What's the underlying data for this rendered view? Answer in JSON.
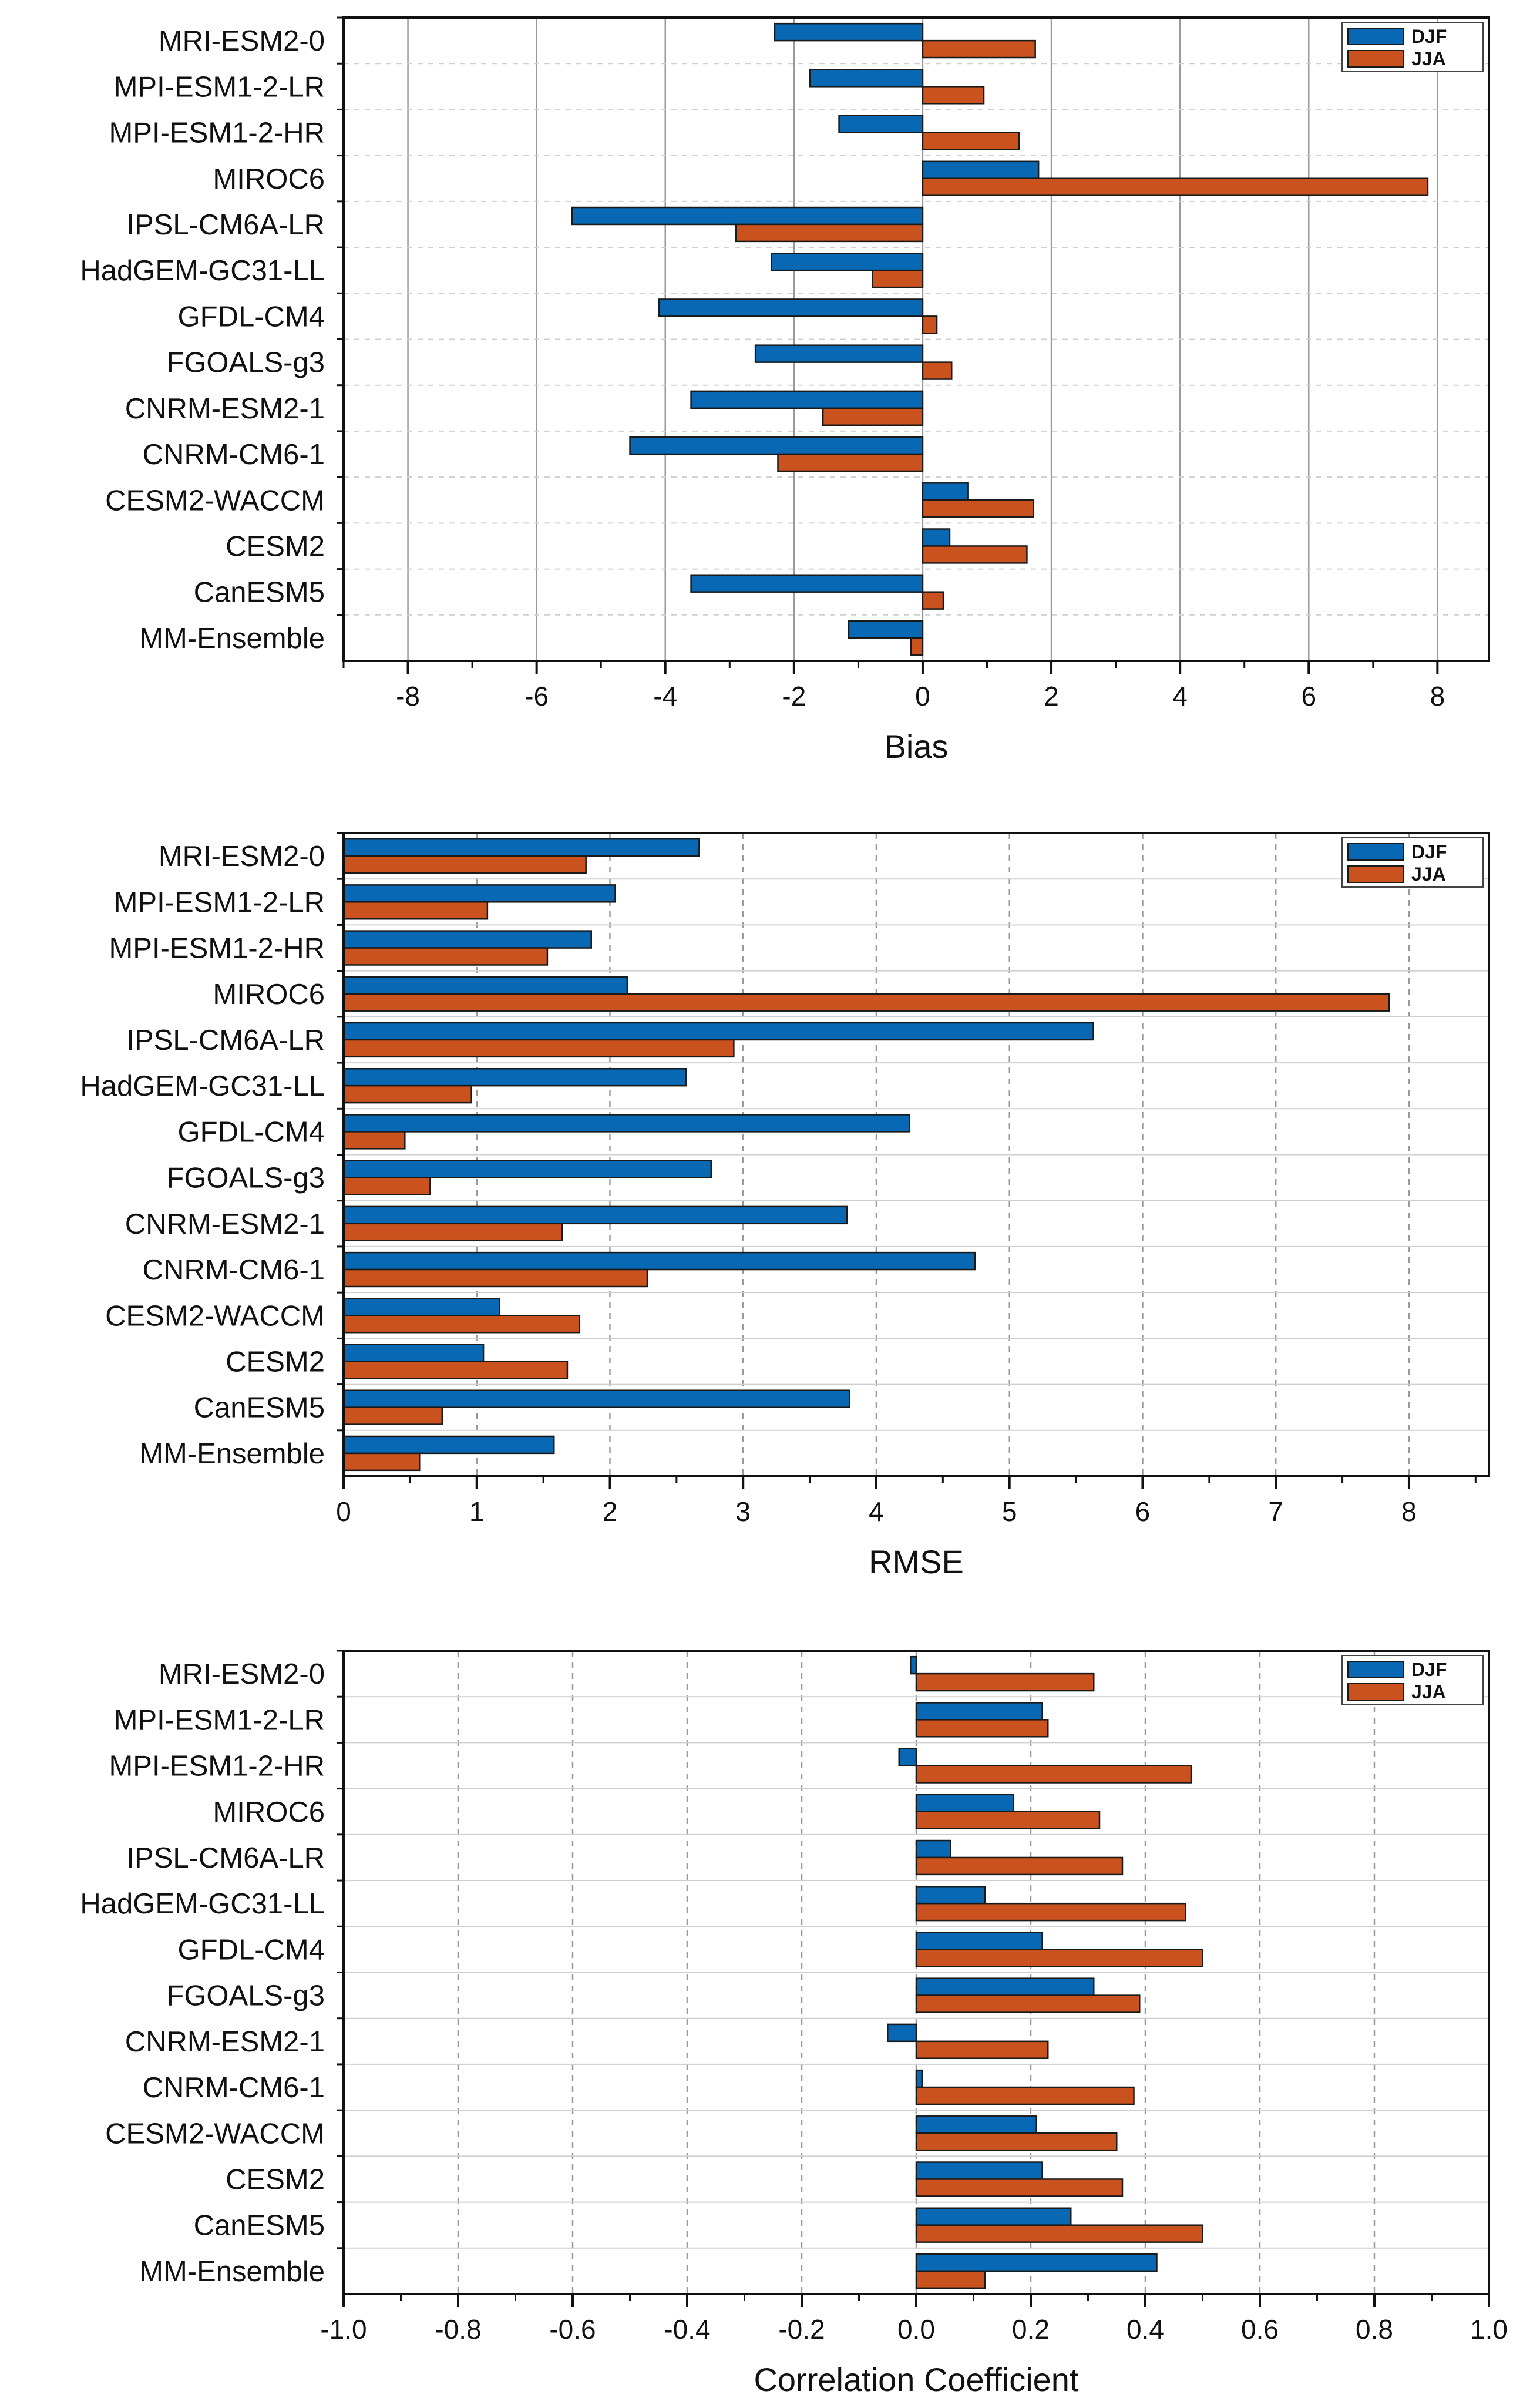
{
  "colors": {
    "djf": "#0868b3",
    "jja": "#c9521e",
    "axis": "#111111",
    "grid": "#9a9a9a"
  },
  "chart_data": [
    {
      "type": "bar",
      "orientation": "horizontal",
      "xlabel": "Bias",
      "xlim": [
        -9,
        8.8
      ],
      "ticks": [
        -8,
        -6,
        -4,
        -2,
        0,
        2,
        4,
        6,
        8
      ],
      "tick_labels": [
        "-8",
        "-6",
        "-4",
        "-2",
        "0",
        "2",
        "4",
        "6",
        "8"
      ],
      "grid": "solid vertical + dashed horizontal",
      "legend": {
        "position": "top-right",
        "entries": [
          "DJF",
          "JJA"
        ]
      },
      "categories": [
        "MRI-ESM2-0",
        "MPI-ESM1-2-LR",
        "MPI-ESM1-2-HR",
        "MIROC6",
        "IPSL-CM6A-LR",
        "HadGEM-GC31-LL",
        "GFDL-CM4",
        "FGOALS-g3",
        "CNRM-ESM2-1",
        "CNRM-CM6-1",
        "CESM2-WACCM",
        "CESM2",
        "CanESM5",
        "MM-Ensemble"
      ],
      "series": [
        {
          "name": "DJF",
          "values": [
            -2.3,
            -1.75,
            -1.3,
            1.8,
            -5.45,
            -2.35,
            -4.1,
            -2.6,
            -3.6,
            -4.55,
            0.7,
            0.42,
            -3.6,
            -1.15
          ]
        },
        {
          "name": "JJA",
          "values": [
            1.75,
            0.95,
            1.5,
            7.85,
            -2.9,
            -0.78,
            0.22,
            0.45,
            -1.55,
            -2.25,
            1.72,
            1.62,
            0.32,
            -0.18
          ]
        }
      ]
    },
    {
      "type": "bar",
      "orientation": "horizontal",
      "xlabel": "RMSE",
      "xlim": [
        0,
        8.6
      ],
      "ticks": [
        0,
        1,
        2,
        3,
        4,
        5,
        6,
        7,
        8
      ],
      "tick_labels": [
        "0",
        "1",
        "2",
        "3",
        "4",
        "5",
        "6",
        "7",
        "8"
      ],
      "grid": "dashed vertical + solid horizontal",
      "legend": {
        "position": "top-right",
        "entries": [
          "DJF",
          "JJA"
        ]
      },
      "categories": [
        "MRI-ESM2-0",
        "MPI-ESM1-2-LR",
        "MPI-ESM1-2-HR",
        "MIROC6",
        "IPSL-CM6A-LR",
        "HadGEM-GC31-LL",
        "GFDL-CM4",
        "FGOALS-g3",
        "CNRM-ESM2-1",
        "CNRM-CM6-1",
        "CESM2-WACCM",
        "CESM2",
        "CanESM5",
        "MM-Ensemble"
      ],
      "series": [
        {
          "name": "DJF",
          "values": [
            2.67,
            2.04,
            1.86,
            2.13,
            5.63,
            2.57,
            4.25,
            2.76,
            3.78,
            4.74,
            1.17,
            1.05,
            3.8,
            1.58
          ]
        },
        {
          "name": "JJA",
          "values": [
            1.82,
            1.08,
            1.53,
            7.85,
            2.93,
            0.96,
            0.46,
            0.65,
            1.64,
            2.28,
            1.77,
            1.68,
            0.74,
            0.57
          ]
        }
      ]
    },
    {
      "type": "bar",
      "orientation": "horizontal",
      "xlabel": "Correlation Coefficient",
      "xlim": [
        -1.0,
        1.0
      ],
      "ticks": [
        -1.0,
        -0.8,
        -0.6,
        -0.4,
        -0.2,
        0,
        0.2,
        0.4,
        0.6,
        0.8,
        1.0
      ],
      "tick_labels": [
        "-1.0",
        "-0.8",
        "-0.6",
        "-0.4",
        "-0.2",
        "0.0",
        "0.2",
        "0.4",
        "0.6",
        "0.8",
        "1.0"
      ],
      "grid": "dashed vertical + solid horizontal",
      "legend": {
        "position": "top-right",
        "entries": [
          "DJF",
          "JJA"
        ]
      },
      "categories": [
        "MRI-ESM2-0",
        "MPI-ESM1-2-LR",
        "MPI-ESM1-2-HR",
        "MIROC6",
        "IPSL-CM6A-LR",
        "HadGEM-GC31-LL",
        "GFDL-CM4",
        "FGOALS-g3",
        "CNRM-ESM2-1",
        "CNRM-CM6-1",
        "CESM2-WACCM",
        "CESM2",
        "CanESM5",
        "MM-Ensemble"
      ],
      "series": [
        {
          "name": "DJF",
          "values": [
            -0.01,
            0.22,
            -0.03,
            0.17,
            0.06,
            0.12,
            0.22,
            0.31,
            -0.05,
            0.01,
            0.21,
            0.22,
            0.27,
            0.42
          ]
        },
        {
          "name": "JJA",
          "values": [
            0.31,
            0.23,
            0.48,
            0.32,
            0.36,
            0.47,
            0.5,
            0.39,
            0.23,
            0.38,
            0.35,
            0.36,
            0.5,
            0.12
          ]
        }
      ]
    }
  ]
}
